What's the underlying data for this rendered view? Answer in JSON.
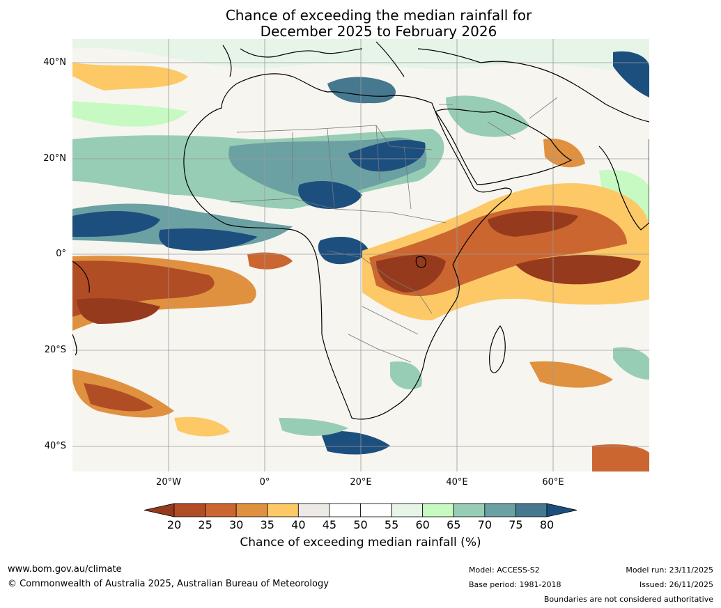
{
  "title": {
    "line1": "Chance of exceeding the median rainfall for",
    "line2": "December 2025 to February 2026"
  },
  "map": {
    "region": "Africa and surrounding oceans",
    "lat_labels": [
      "40°N",
      "20°N",
      "0°",
      "20°S",
      "40°S"
    ],
    "lon_labels": [
      "20°W",
      "0°",
      "20°E",
      "40°E",
      "60°E"
    ],
    "lat_range": [
      -45,
      45
    ],
    "lon_range": [
      -40,
      80
    ]
  },
  "colorbar": {
    "ticks": [
      "20",
      "25",
      "30",
      "35",
      "40",
      "45",
      "50",
      "55",
      "60",
      "65",
      "70",
      "75",
      "80"
    ],
    "colors": [
      "#963a1d",
      "#b14d25",
      "#cb6630",
      "#e09140",
      "#fcc966",
      "#edeae5",
      "#ffffff",
      "#ffffff",
      "#e6f5e8",
      "#c6fac2",
      "#98cdb5",
      "#6ba1a3",
      "#46788f",
      "#1c4f7e"
    ],
    "label": "Chance of exceeding median rainfall (%)"
  },
  "footer": {
    "website": "www.bom.gov.au/climate",
    "copyright": "© Commonwealth of Australia 2025, Australian Bureau of Meteorology",
    "model": "Model: ACCESS-S2",
    "base_period": "Base period: 1981-2018",
    "model_run": "Model run: 23/11/2025",
    "issued": "Issued: 26/11/2025",
    "disclaimer": "Boundaries are not considered authoritative"
  }
}
